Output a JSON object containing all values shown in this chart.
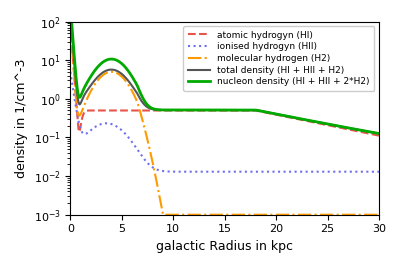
{
  "title": "",
  "xlabel": "galactic Radius in kpc",
  "ylabel": "density in 1/cm^-3",
  "xlim": [
    0,
    30
  ],
  "ylim": [
    0.001,
    100.0
  ],
  "legend_labels": [
    "atomic hydrogyn (HI)",
    "ionised hydrogyn (HII)",
    "molecular hydrogen (H2)",
    "total density (HI + HII + H2)",
    "nucleon density (HI + HII + 2*H2)"
  ],
  "line_colors": [
    "#e8534a",
    "#7070ee",
    "#ff9900",
    "#555555",
    "#00aa00"
  ],
  "line_styles": [
    "--",
    ":",
    "-.",
    "-",
    "-"
  ],
  "line_widths": [
    1.5,
    1.5,
    1.5,
    1.5,
    2.0
  ],
  "legend_fontsize": 6.5,
  "tick_fontsize": 8,
  "label_fontsize": 9
}
